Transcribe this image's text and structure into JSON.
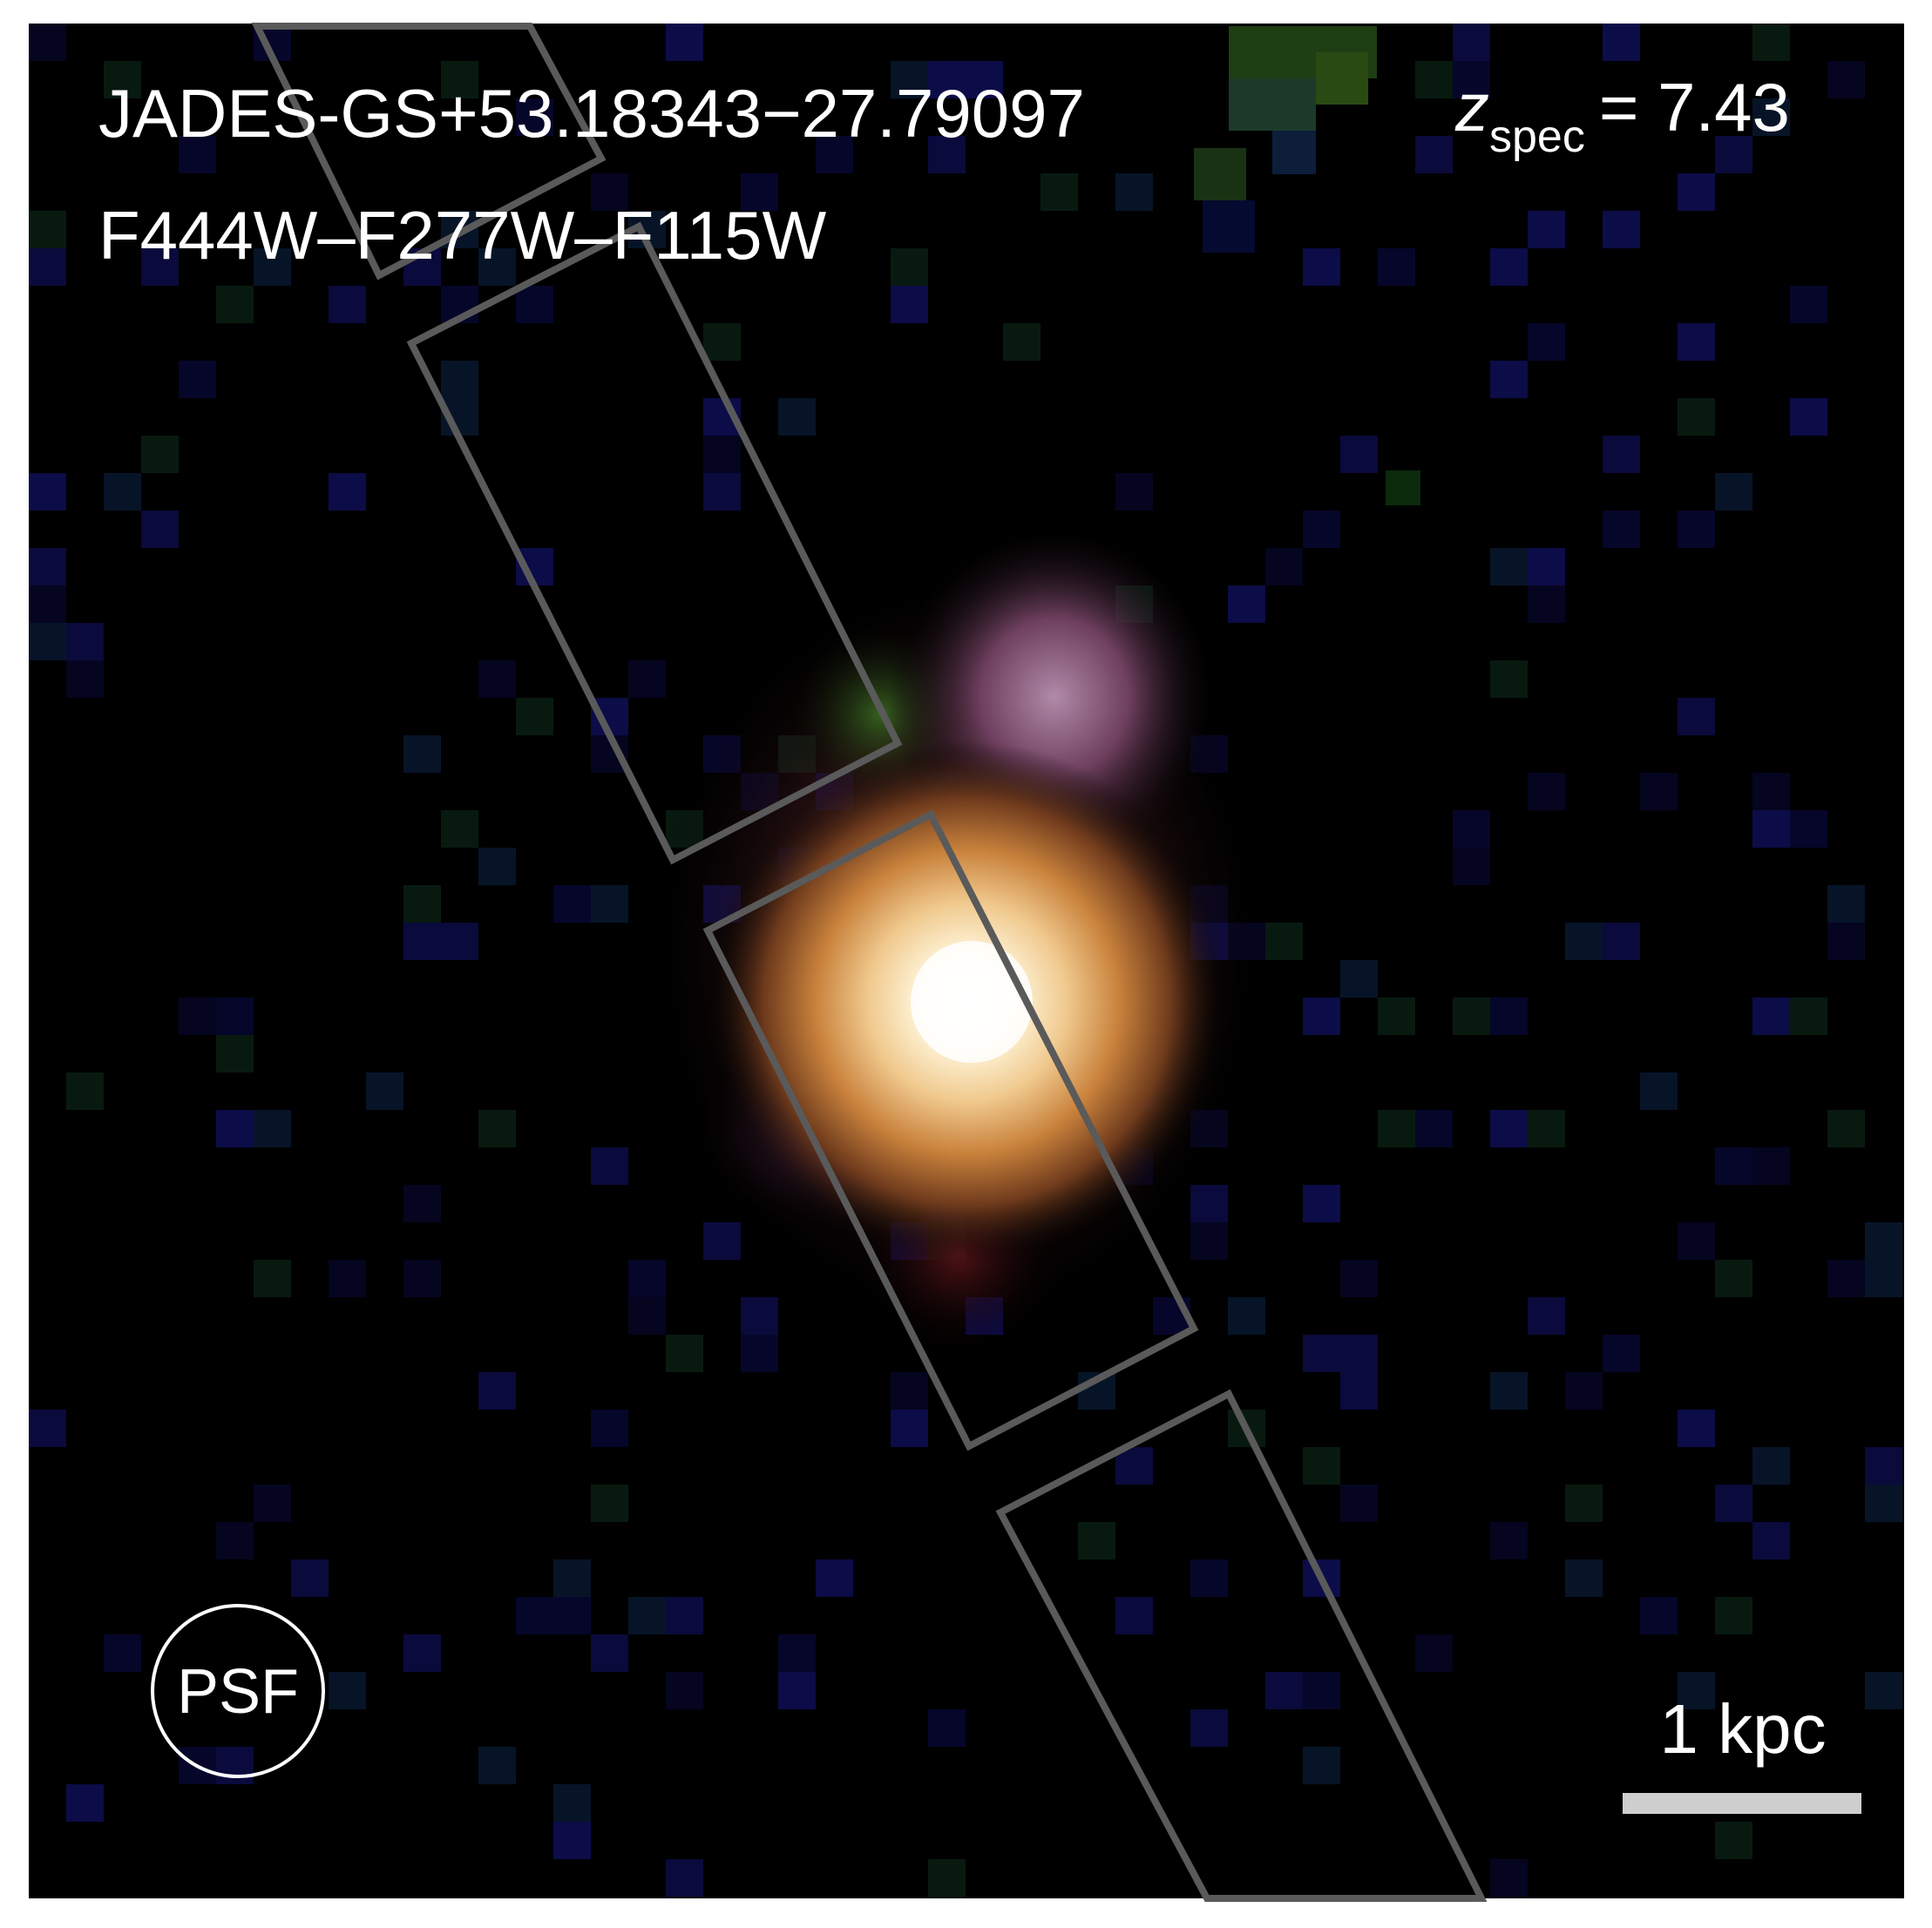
{
  "image": {
    "object_id": "JADES-GS+53.18343−27.79097",
    "filters": "F444W–F277W–F115W",
    "redshift": {
      "symbol": "z",
      "subscript": "spec",
      "equals": "= 7.43"
    },
    "psf_label": "PSF",
    "scale_bar_label": "1 kpc"
  },
  "colors": {
    "frame_background": "#000000",
    "page_background": "#ffffff",
    "slit_outline": "#5a5a5a",
    "scale_bar": "#cfcfcf",
    "text": "#ffffff",
    "galaxy_core": "#fffdf2",
    "galaxy_orange": "#d68a3a",
    "galaxy_magenta": "#7a3a6e",
    "neighbor_green": "#2c5a1e",
    "noise_blue": "#0a0a3c"
  }
}
